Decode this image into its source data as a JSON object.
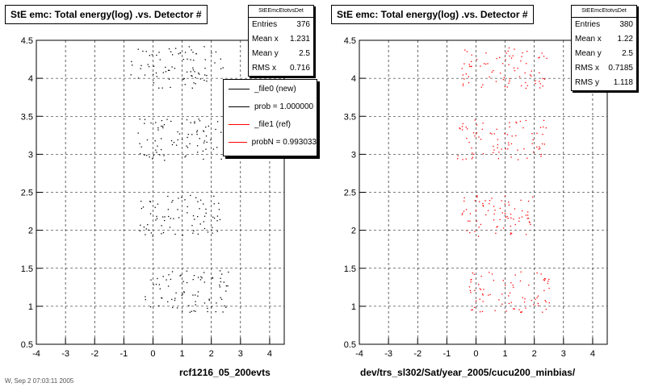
{
  "chart_data": [
    {
      "type": "scatter",
      "title": "StE emc: Total energy(log) .vs. Detector #",
      "xlabel": "rcf1216_05_200evts",
      "ylabel": "",
      "xlim": [
        -4,
        4.5
      ],
      "ylim": [
        0.5,
        4.5
      ],
      "xticks": [
        "-4",
        "-3",
        "-2",
        "-1",
        "0",
        "1",
        "2",
        "3",
        "4"
      ],
      "yticks": [
        "0.5",
        "1",
        "1.5",
        "2",
        "2.5",
        "3",
        "3.5",
        "4",
        "4.5"
      ],
      "grid": true,
      "marker_color": "#000000",
      "clusters": [
        {
          "y": 4.15,
          "x_range": [
            -0.8,
            2.4
          ],
          "points": 80
        },
        {
          "y": 3.2,
          "x_range": [
            -0.6,
            2.4
          ],
          "points": 80
        },
        {
          "y": 2.2,
          "x_range": [
            -0.5,
            2.3
          ],
          "points": 75
        },
        {
          "y": 1.2,
          "x_range": [
            -0.3,
            2.6
          ],
          "points": 80
        }
      ],
      "stats": {
        "header": "StEEmcEtotvsDet",
        "rows": [
          {
            "label": "Entries",
            "value": "376"
          },
          {
            "label": "Mean x",
            "value": "1.231"
          },
          {
            "label": "Mean y",
            "value": "2.5"
          },
          {
            "label": "RMS x",
            "value": "0.716"
          }
        ]
      },
      "legend": {
        "entries": [
          {
            "label": "_file0 (new)",
            "color": "#000000"
          },
          {
            "label": "prob = 1.000000",
            "color": "#000000"
          },
          {
            "label": "_file1 (ref)",
            "color": "#ff0000"
          },
          {
            "label": "probN = 0.993033",
            "color": "#ff0000"
          }
        ]
      }
    },
    {
      "type": "scatter",
      "title": "StE emc: Total energy(log) .vs. Detector #",
      "xlabel": "dev/trs_sl302/Sat/year_2005/cucu200_minbias/",
      "ylabel": "",
      "xlim": [
        -4,
        4.5
      ],
      "ylim": [
        0.5,
        4.5
      ],
      "xticks": [
        "-4",
        "-3",
        "-2",
        "-1",
        "0",
        "1",
        "2",
        "3",
        "4"
      ],
      "yticks": [
        "0.5",
        "1",
        "1.5",
        "2",
        "2.5",
        "3",
        "3.5",
        "4",
        "4.5"
      ],
      "grid": true,
      "marker_color": "#ff0000",
      "clusters": [
        {
          "y": 4.15,
          "x_range": [
            -0.5,
            2.5
          ],
          "points": 80
        },
        {
          "y": 3.2,
          "x_range": [
            -0.7,
            2.4
          ],
          "points": 80
        },
        {
          "y": 2.2,
          "x_range": [
            -0.5,
            2.0
          ],
          "points": 75
        },
        {
          "y": 1.2,
          "x_range": [
            -0.3,
            2.6
          ],
          "points": 80
        }
      ],
      "stats": {
        "header": "StEEmcEtotvsDet",
        "rows": [
          {
            "label": "Entries",
            "value": "380"
          },
          {
            "label": "Mean x",
            "value": "1.22"
          },
          {
            "label": "Mean y",
            "value": "2.5"
          },
          {
            "label": "RMS x",
            "value": "0.7185"
          },
          {
            "label": "RMS y",
            "value": "1.118"
          }
        ]
      }
    }
  ],
  "footer": "W, Sep  2  07:03:11 2005"
}
